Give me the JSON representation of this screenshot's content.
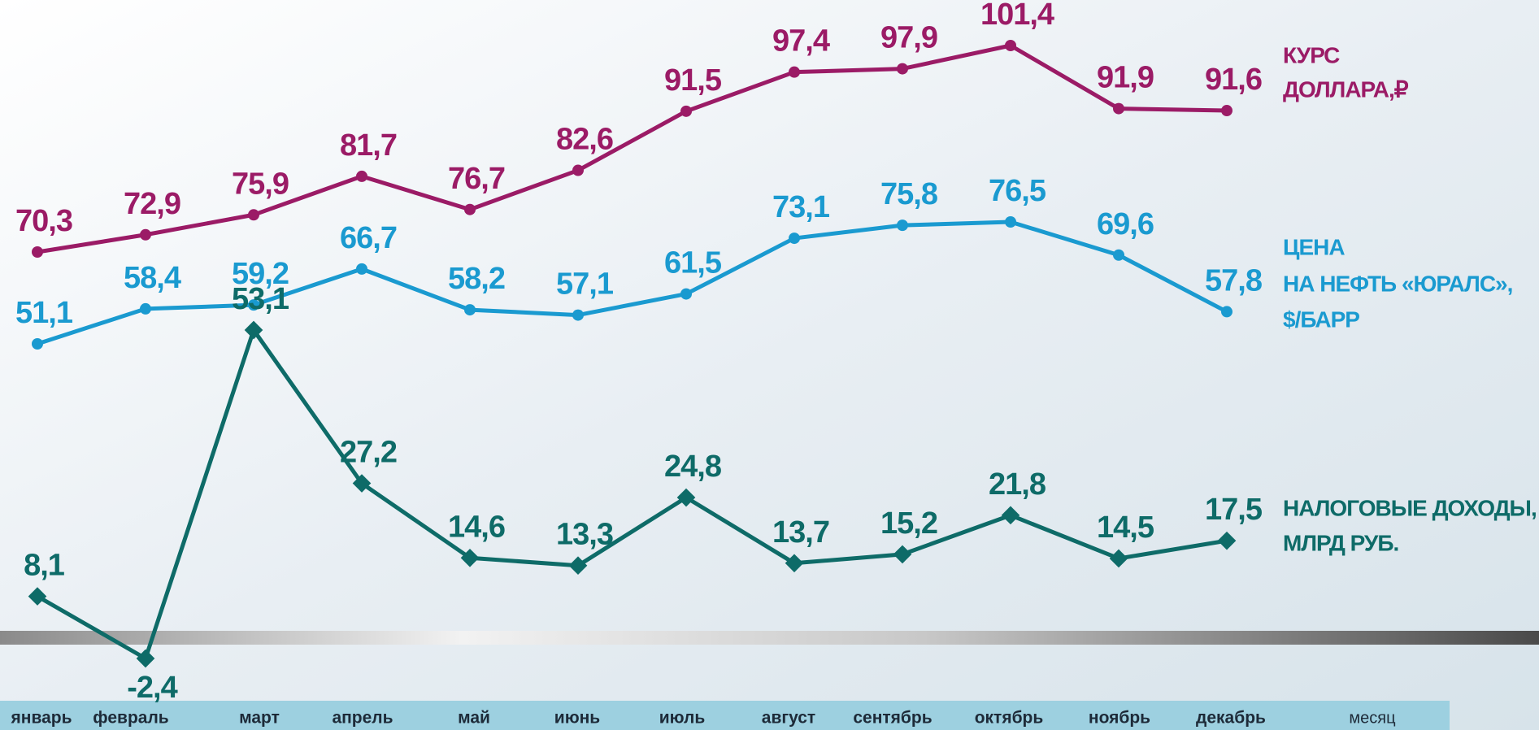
{
  "chart_data": {
    "type": "line",
    "categories": [
      "январь",
      "февраль",
      "март",
      "апрель",
      "май",
      "июнь",
      "июль",
      "август",
      "сентябрь",
      "октябрь",
      "ноябрь",
      "декабрь"
    ],
    "x_label": "месяц",
    "series": [
      {
        "name": [
          "КУРС",
          "ДОЛЛАРА,₽"
        ],
        "color": "#9b1b66",
        "marker": "circle",
        "values": [
          70.3,
          72.9,
          75.9,
          81.7,
          76.7,
          82.6,
          91.5,
          97.4,
          97.9,
          101.4,
          91.9,
          91.6
        ],
        "value_labels": [
          "70,3",
          "72,9",
          "75,9",
          "81,7",
          "76,7",
          "82,6",
          "91,5",
          "97,4",
          "97,9",
          "101,4",
          "91,9",
          "91,6"
        ]
      },
      {
        "name": [
          "ЦЕНА",
          "НА НЕФТЬ «ЮРАЛС»,",
          "$/БАРР"
        ],
        "color": "#1a9ad0",
        "marker": "circle",
        "values": [
          51.1,
          58.4,
          59.2,
          66.7,
          58.2,
          57.1,
          61.5,
          73.1,
          75.8,
          76.5,
          69.6,
          57.8
        ],
        "value_labels": [
          "51,1",
          "58,4",
          "59,2",
          "66,7",
          "58,2",
          "57,1",
          "61,5",
          "73,1",
          "75,8",
          "76,5",
          "69,6",
          "57,8"
        ]
      },
      {
        "name": [
          "НАЛОГОВЫЕ ДОХОДЫ,",
          "МЛРД РУБ."
        ],
        "color": "#0e6b68",
        "marker": "diamond",
        "values": [
          8.1,
          -2.4,
          53.1,
          27.2,
          14.6,
          13.3,
          24.8,
          13.7,
          15.2,
          21.8,
          14.5,
          17.5
        ],
        "value_labels": [
          "8,1",
          "-2,4",
          "53,1",
          "27,2",
          "14,6",
          "13,3",
          "24,8",
          "13,7",
          "15,2",
          "21,8",
          "14,5",
          "17,5"
        ]
      }
    ]
  }
}
